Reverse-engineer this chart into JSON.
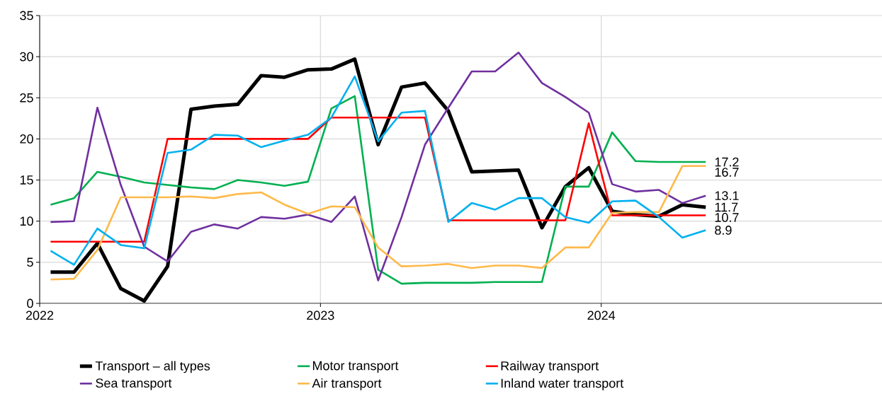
{
  "chart_data": {
    "type": "line",
    "x": [
      "2022-01-15",
      "2022-02-15",
      "2022-03-15",
      "2022-04-15",
      "2022-05-15",
      "2022-06-15",
      "2022-07-15",
      "2022-08-15",
      "2022-09-15",
      "2022-10-15",
      "2022-11-15",
      "2022-12-15",
      "2023-01-15",
      "2023-02-15",
      "2023-03-15",
      "2023-04-15",
      "2023-05-15",
      "2023-06-15",
      "2023-07-15",
      "2023-08-15",
      "2023-09-15",
      "2023-10-15",
      "2023-11-15",
      "2023-12-15",
      "2024-01-15",
      "2024-02-15",
      "2024-03-15",
      "2024-04-15",
      "2024-05-15"
    ],
    "series": [
      {
        "name": "Transport – all types",
        "color": "#000000",
        "values": [
          3.8,
          3.8,
          7.3,
          1.8,
          0.3,
          4.5,
          23.6,
          24.0,
          24.2,
          27.7,
          27.5,
          28.4,
          28.5,
          29.7,
          19.3,
          26.3,
          26.8,
          23.4,
          16.0,
          16.1,
          16.2,
          9.2,
          14.2,
          16.5,
          11.2,
          10.8,
          10.6,
          12.0,
          11.7
        ],
        "value_labels": [
          null,
          null,
          null,
          null,
          null,
          null,
          null,
          null,
          null,
          null,
          null,
          null,
          null,
          null,
          null,
          null,
          null,
          null,
          null,
          null,
          null,
          null,
          null,
          null,
          null,
          null,
          null,
          null,
          "11.7"
        ]
      },
      {
        "name": "Motor transport",
        "color": "#00b050",
        "values": [
          12.0,
          12.8,
          16.0,
          15.4,
          14.7,
          14.4,
          14.1,
          13.9,
          15.0,
          14.7,
          14.3,
          14.8,
          23.7,
          25.2,
          4.1,
          2.4,
          2.5,
          2.5,
          2.5,
          2.6,
          2.6,
          2.6,
          14.2,
          14.2,
          20.8,
          17.3,
          17.2,
          17.2,
          17.2
        ],
        "value_labels": [
          null,
          null,
          null,
          null,
          null,
          null,
          null,
          null,
          null,
          null,
          null,
          null,
          null,
          null,
          null,
          null,
          null,
          null,
          null,
          null,
          null,
          null,
          null,
          null,
          null,
          null,
          null,
          null,
          "17.2"
        ]
      },
      {
        "name": "Railway transport",
        "color": "#ff0000",
        "values": [
          7.5,
          7.5,
          7.5,
          7.5,
          7.5,
          20.0,
          20.0,
          20.0,
          20.0,
          20.0,
          20.0,
          20.0,
          22.6,
          22.6,
          22.6,
          22.6,
          22.6,
          10.1,
          10.1,
          10.1,
          10.1,
          10.1,
          10.1,
          21.9,
          10.7,
          10.7,
          10.7,
          10.7,
          10.7
        ],
        "value_labels": [
          null,
          null,
          null,
          null,
          null,
          null,
          null,
          null,
          null,
          null,
          null,
          null,
          null,
          null,
          null,
          null,
          null,
          null,
          null,
          null,
          null,
          null,
          null,
          null,
          null,
          null,
          null,
          null,
          "10.7"
        ]
      },
      {
        "name": "Sea transport",
        "color": "#7030a0",
        "values": [
          9.9,
          10.0,
          23.8,
          14.4,
          6.9,
          5.1,
          8.7,
          9.6,
          9.1,
          10.5,
          10.3,
          10.8,
          9.9,
          13.0,
          2.8,
          10.5,
          19.3,
          23.8,
          28.2,
          28.2,
          30.5,
          26.8,
          25.1,
          23.2,
          14.5,
          13.6,
          13.8,
          12.2,
          13.1
        ],
        "value_labels": [
          null,
          null,
          null,
          null,
          null,
          null,
          null,
          null,
          null,
          null,
          null,
          null,
          null,
          null,
          null,
          null,
          null,
          null,
          null,
          null,
          null,
          null,
          null,
          null,
          null,
          null,
          null,
          null,
          "13.1"
        ]
      },
      {
        "name": "Air transport",
        "color": "#ffb94a",
        "values": [
          2.9,
          3.0,
          6.5,
          12.9,
          12.9,
          12.9,
          13.0,
          12.8,
          13.3,
          13.5,
          12.0,
          10.9,
          11.8,
          11.7,
          6.8,
          4.5,
          4.6,
          4.8,
          4.3,
          4.6,
          4.6,
          4.3,
          6.8,
          6.8,
          11.0,
          11.1,
          11.1,
          16.7,
          16.7
        ],
        "value_labels": [
          null,
          null,
          null,
          null,
          null,
          null,
          null,
          null,
          null,
          null,
          null,
          null,
          null,
          null,
          null,
          null,
          null,
          null,
          null,
          null,
          null,
          null,
          null,
          null,
          null,
          null,
          null,
          null,
          "16.7"
        ]
      },
      {
        "name": "Inland water transport",
        "color": "#00b0f0",
        "values": [
          6.4,
          4.7,
          9.1,
          7.1,
          6.7,
          18.3,
          18.7,
          20.5,
          20.4,
          19.0,
          19.8,
          20.5,
          22.6,
          27.6,
          19.7,
          23.2,
          23.4,
          9.9,
          12.2,
          11.4,
          12.8,
          12.8,
          10.5,
          9.8,
          12.4,
          12.5,
          10.5,
          8.0,
          8.9
        ],
        "value_labels": [
          null,
          null,
          null,
          null,
          null,
          null,
          null,
          null,
          null,
          null,
          null,
          null,
          null,
          null,
          null,
          null,
          null,
          null,
          null,
          null,
          null,
          null,
          null,
          null,
          null,
          null,
          null,
          null,
          "8.9"
        ]
      }
    ],
    "xlim": [
      "2022",
      "2025"
    ],
    "xticks": [
      "2022",
      "2023",
      "2024"
    ],
    "ylim": [
      0,
      35
    ],
    "yticks": [
      0,
      5,
      10,
      15,
      20,
      25,
      30,
      35
    ],
    "grid": true,
    "legend": "bottom"
  }
}
